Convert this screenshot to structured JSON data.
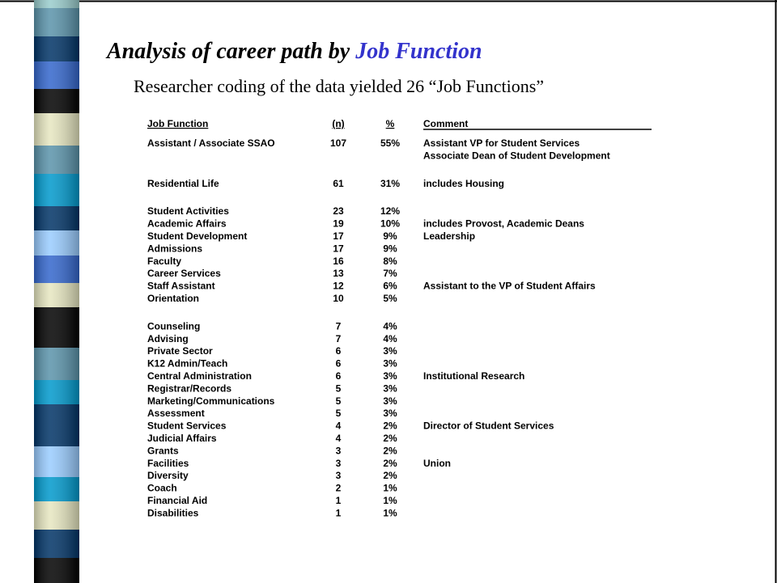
{
  "slide": {
    "title": {
      "lead": "Analysis of career path by",
      "highlight": "Job Function"
    },
    "subtitle": "Researcher coding of the data yielded 26 “Job Functions”",
    "table": {
      "headers": [
        "Job Function",
        "(n)",
        "%",
        "Comment"
      ],
      "groups": [
        [
          {
            "function": "Assistant / Associate SSAO",
            "n": "107",
            "pct": "55%",
            "comment": [
              "Assistant VP for Student Services",
              "Associate Dean of Student Development"
            ]
          }
        ],
        [
          {
            "function": "Residential Life",
            "n": "61",
            "pct": "31%",
            "comment": [
              "includes Housing"
            ]
          }
        ],
        [
          {
            "function": "Student Activities",
            "n": "23",
            "pct": "12%"
          },
          {
            "function": "Academic Affairs",
            "n": "19",
            "pct": "10%",
            "comment": [
              "includes Provost, Academic Deans"
            ]
          },
          {
            "function": "Student Development",
            "n": "17",
            "pct": "9%",
            "comment": [
              "Leadership"
            ]
          },
          {
            "function": "Admissions",
            "n": "17",
            "pct": "9%"
          },
          {
            "function": "Faculty",
            "n": "16",
            "pct": "8%"
          },
          {
            "function": "Career Services",
            "n": "13",
            "pct": "7%"
          },
          {
            "function": "Staff Assistant",
            "n": "12",
            "pct": "6%",
            "comment": [
              "Assistant to the VP of Student Affairs"
            ]
          },
          {
            "function": "Orientation",
            "n": "10",
            "pct": "5%"
          }
        ],
        [
          {
            "function": "Counseling",
            "n": "7",
            "pct": "4%"
          },
          {
            "function": "Advising",
            "n": "7",
            "pct": "4%"
          },
          {
            "function": "Private Sector",
            "n": "6",
            "pct": "3%"
          },
          {
            "function": "K12 Admin/Teach",
            "n": "6",
            "pct": "3%"
          },
          {
            "function": "Central Administration",
            "n": "6",
            "pct": "3%",
            "comment": [
              "Institutional Research"
            ]
          },
          {
            "function": "Registrar/Records",
            "n": "5",
            "pct": "3%"
          },
          {
            "function": "Marketing/Communications",
            "n": "5",
            "pct": "3%"
          },
          {
            "function": "Assessment",
            "n": "5",
            "pct": "3%"
          },
          {
            "function": "Student Services",
            "n": "4",
            "pct": "2%",
            "comment": [
              "Director of Student Services"
            ]
          },
          {
            "function": "Judicial Affairs",
            "n": "4",
            "pct": "2%"
          },
          {
            "function": "Grants",
            "n": "3",
            "pct": "2%"
          },
          {
            "function": "Facilities",
            "n": "3",
            "pct": "2%",
            "comment": [
              "Union"
            ]
          },
          {
            "function": "Diversity",
            "n": "3",
            "pct": "2%"
          },
          {
            "function": "Coach",
            "n": "2",
            "pct": "1%"
          },
          {
            "function": "Financial Aid",
            "n": "1",
            "pct": "1%"
          },
          {
            "function": "Disabilities",
            "n": "1",
            "pct": "1%"
          }
        ]
      ]
    }
  }
}
